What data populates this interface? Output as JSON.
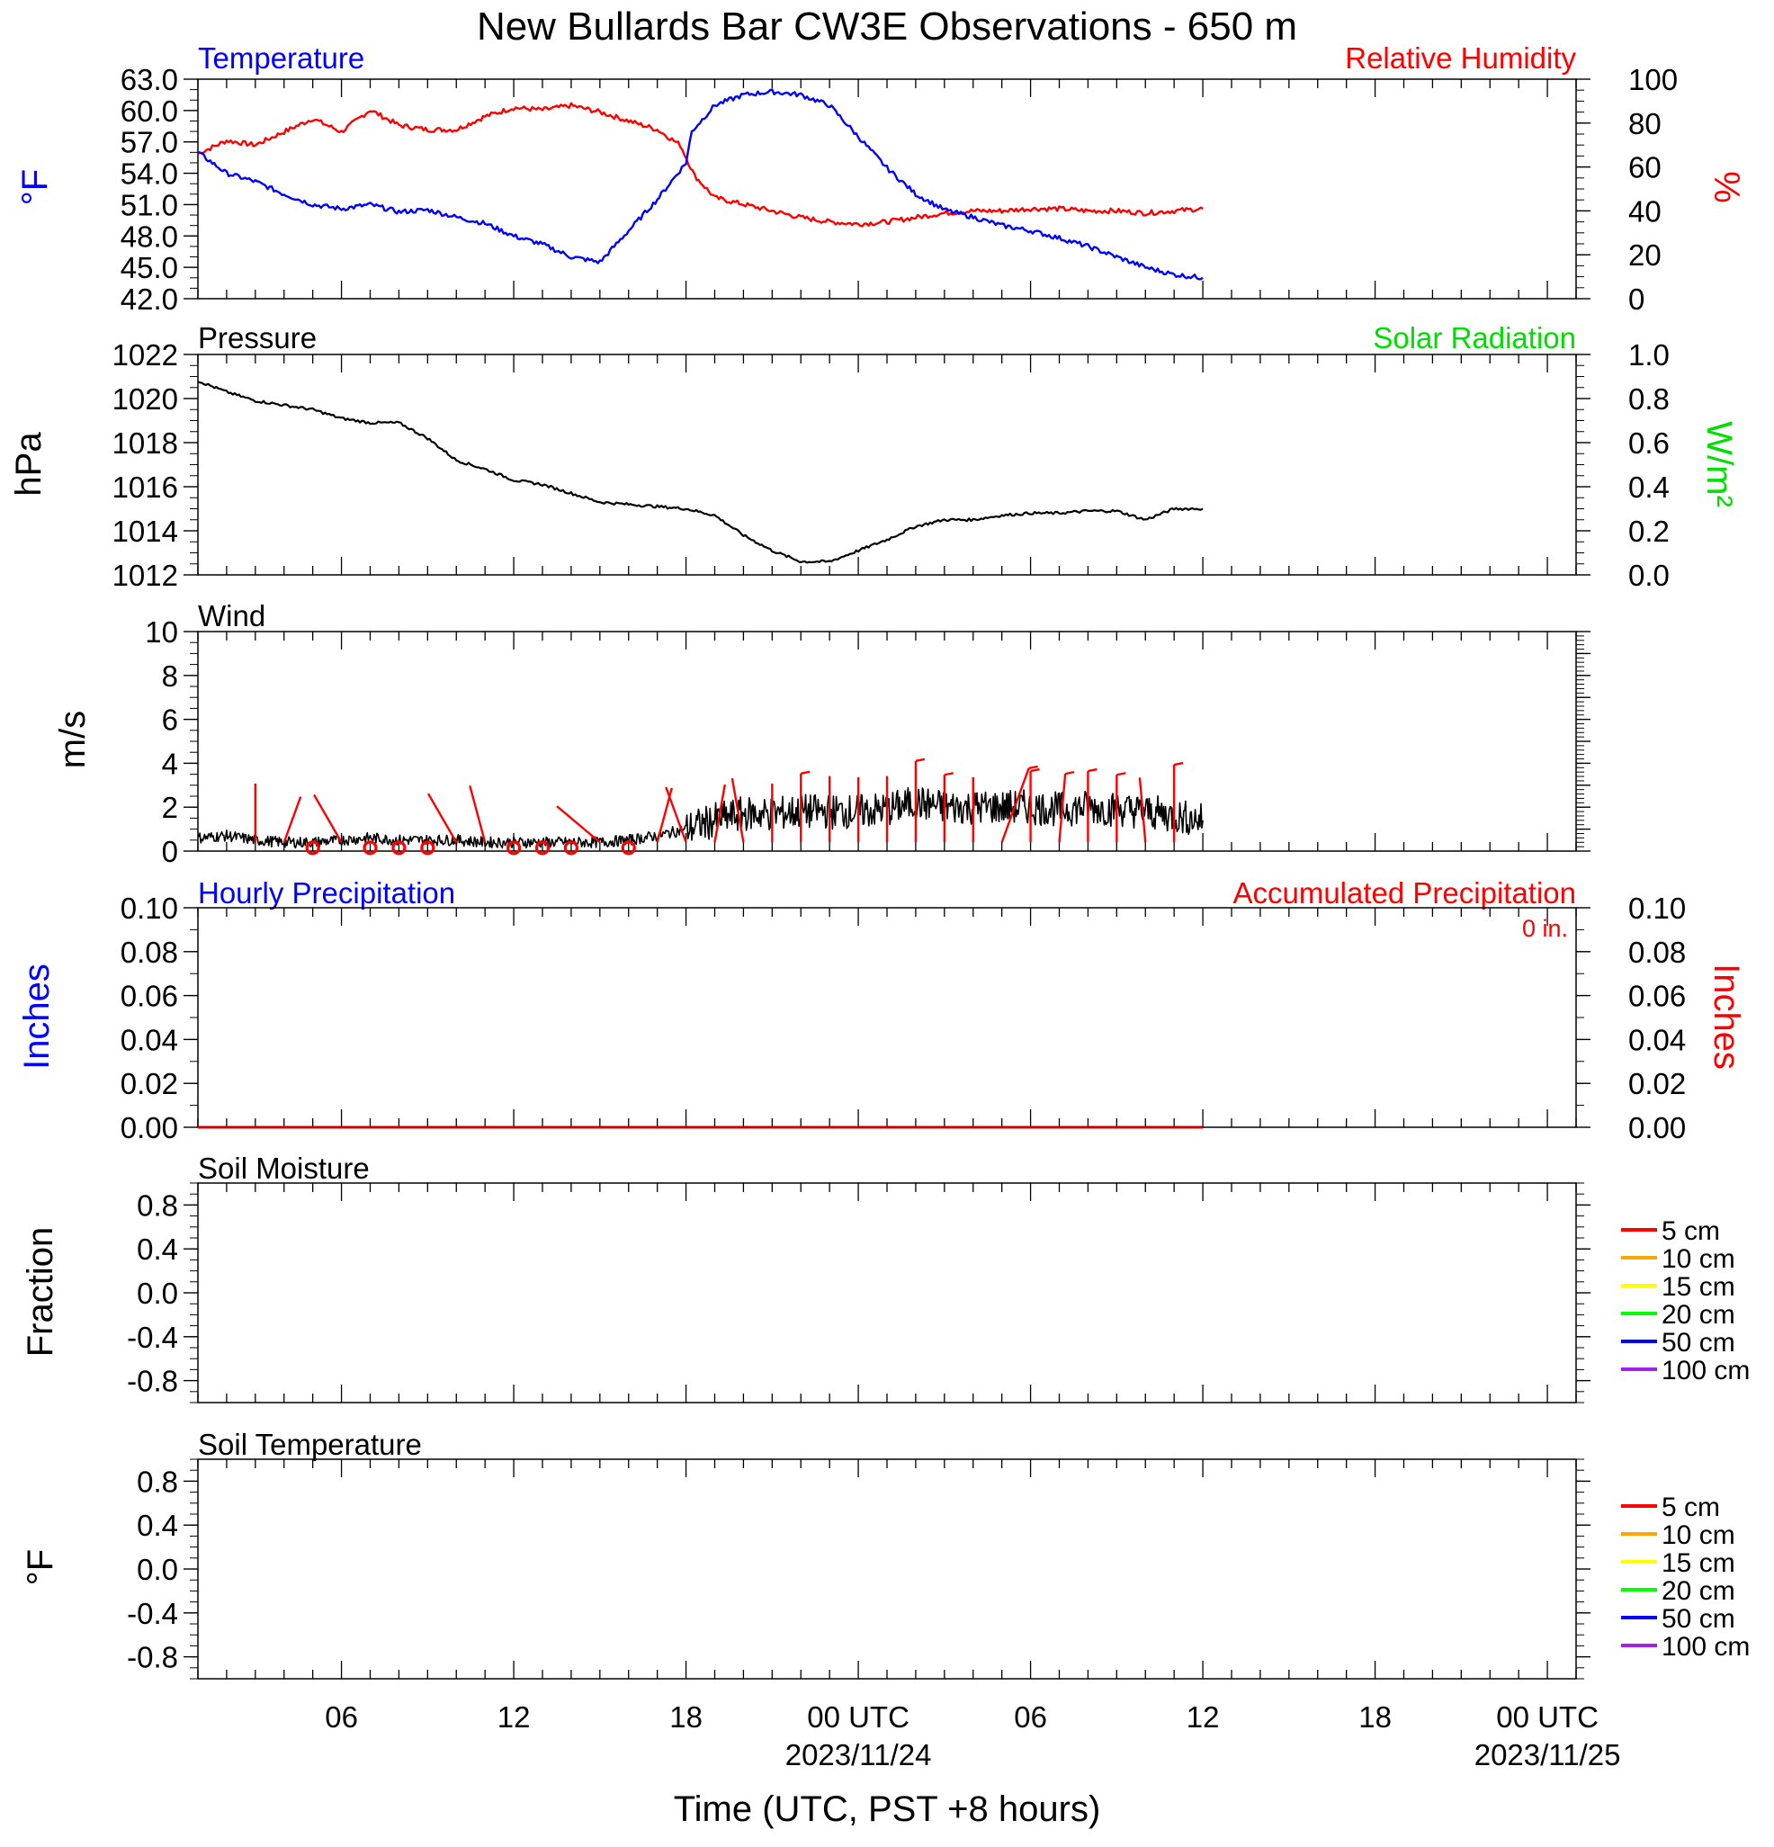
{
  "title": "New Bullards Bar CW3E Observations - 650 m",
  "xaxis": {
    "label": "Time (UTC, PST +8 hours)",
    "ticks": [
      {
        "t": 6,
        "label": "06",
        "date": ""
      },
      {
        "t": 12,
        "label": "12",
        "date": ""
      },
      {
        "t": 18,
        "label": "18",
        "date": ""
      },
      {
        "t": 24,
        "label": "00 UTC",
        "date": "2023/11/24"
      },
      {
        "t": 30,
        "label": "06",
        "date": ""
      },
      {
        "t": 36,
        "label": "12",
        "date": ""
      },
      {
        "t": 42,
        "label": "18",
        "date": ""
      },
      {
        "t": 48,
        "label": "00 UTC",
        "date": "2023/11/25"
      }
    ],
    "range": [
      1,
      49
    ]
  },
  "colors": {
    "blue": "#0000ff",
    "red": "#ff0000",
    "green": "#00dd00",
    "black": "#000000"
  },
  "panels": {
    "temp": {
      "left_title": "Temperature",
      "right_title": "Relative Humidity",
      "left_unit": "°F",
      "right_unit": "%",
      "left_ticks": [
        "63.0",
        "60.0",
        "57.0",
        "54.0",
        "51.0",
        "48.0",
        "45.0",
        "42.0"
      ],
      "right_ticks": [
        "100",
        "80",
        "60",
        "40",
        "20",
        "0"
      ]
    },
    "pressure": {
      "left_title": "Pressure",
      "right_title": "Solar Radiation",
      "left_unit": "hPa",
      "right_unit": "W/m²",
      "left_ticks": [
        "1022",
        "1020",
        "1018",
        "1016",
        "1014",
        "1012"
      ],
      "right_ticks": [
        "1.0",
        "0.8",
        "0.6",
        "0.4",
        "0.2",
        "0.0"
      ]
    },
    "wind": {
      "left_title": "Wind",
      "left_unit": "m/s",
      "left_ticks": [
        "10",
        "8",
        "6",
        "4",
        "2",
        "0"
      ]
    },
    "precip": {
      "left_title": "Hourly Precipitation",
      "right_title": "Accumulated Precipitation",
      "total_label": "0 in.",
      "left_unit": "Inches",
      "right_unit": "Inches",
      "left_ticks": [
        "0.10",
        "0.08",
        "0.06",
        "0.04",
        "0.02",
        "0.00"
      ],
      "right_ticks": [
        "0.10",
        "0.08",
        "0.06",
        "0.04",
        "0.02",
        "0.00"
      ]
    },
    "soil_moisture": {
      "left_title": "Soil Moisture",
      "left_unit": "Fraction",
      "left_ticks": [
        "0.8",
        "0.4",
        "0.0",
        "-0.4",
        "-0.8"
      ],
      "legend": [
        {
          "label": "5 cm",
          "color": "#ff0000"
        },
        {
          "label": "10 cm",
          "color": "#ffa500"
        },
        {
          "label": "15 cm",
          "color": "#ffff00"
        },
        {
          "label": "20 cm",
          "color": "#00ff00"
        },
        {
          "label": "50 cm",
          "color": "#0000ff"
        },
        {
          "label": "100 cm",
          "color": "#a020f0"
        }
      ]
    },
    "soil_temp": {
      "left_title": "Soil Temperature",
      "left_unit": "°F",
      "left_ticks": [
        "0.8",
        "0.4",
        "0.0",
        "-0.4",
        "-0.8"
      ],
      "legend": [
        {
          "label": "5 cm",
          "color": "#ff0000"
        },
        {
          "label": "10 cm",
          "color": "#ffa500"
        },
        {
          "label": "15 cm",
          "color": "#ffff00"
        },
        {
          "label": "20 cm",
          "color": "#00ff00"
        },
        {
          "label": "50 cm",
          "color": "#0000ff"
        },
        {
          "label": "100 cm",
          "color": "#a020f0"
        }
      ]
    }
  },
  "chart_data": [
    {
      "type": "line",
      "title": "Temperature",
      "ylabel": "°F",
      "ylim": [
        42,
        63
      ],
      "series": [
        {
          "name": "Temperature",
          "color": "#0000ff",
          "x": [
            1,
            2,
            3,
            4,
            5,
            6,
            7,
            8,
            9,
            10,
            11,
            12,
            13,
            14,
            15,
            16,
            17,
            18,
            18.2,
            19,
            20,
            21,
            22,
            23,
            24,
            25,
            26,
            27,
            28,
            29,
            30,
            31,
            32,
            33,
            34,
            35,
            36
          ],
          "y": [
            56.0,
            54.0,
            53.2,
            52.0,
            51.0,
            50.6,
            51.0,
            50.3,
            50.5,
            49.8,
            49.2,
            48.0,
            47.2,
            46.0,
            45.5,
            48.5,
            51.5,
            55.0,
            58.0,
            60.5,
            61.5,
            61.8,
            61.5,
            60.5,
            57.5,
            54.5,
            52.0,
            50.5,
            49.8,
            49.0,
            48.5,
            47.8,
            47.0,
            46.0,
            45.0,
            44.3,
            44.0
          ]
        }
      ]
    },
    {
      "type": "line",
      "title": "Relative Humidity",
      "ylabel": "%",
      "ylim": [
        0,
        100
      ],
      "series": [
        {
          "name": "Relative Humidity",
          "color": "#ff0000",
          "x": [
            1,
            2,
            3,
            4,
            5,
            6,
            7,
            8,
            9,
            10,
            11,
            12,
            13,
            14,
            15,
            16,
            17,
            17.8,
            18.3,
            19,
            20,
            21,
            22,
            23,
            24,
            25,
            26,
            27,
            28,
            29,
            30,
            31,
            32,
            33,
            34,
            35,
            36
          ],
          "y": [
            66,
            72,
            70,
            76,
            82,
            76,
            86,
            79,
            77,
            77,
            83,
            87,
            86,
            88,
            85,
            81,
            77,
            70,
            56,
            46,
            43,
            40,
            37,
            35,
            34,
            35,
            37,
            39,
            40,
            40,
            41,
            41,
            40,
            40,
            39,
            40,
            41
          ]
        }
      ]
    },
    {
      "type": "line",
      "title": "Pressure",
      "ylabel": "hPa",
      "ylim": [
        1012,
        1022
      ],
      "series": [
        {
          "name": "Pressure",
          "color": "#000000",
          "x": [
            1,
            2,
            3,
            4,
            5,
            6,
            7,
            8,
            9,
            10,
            11,
            12,
            13,
            14,
            15,
            16,
            17,
            18,
            19,
            20,
            21,
            22,
            23,
            24,
            25,
            26,
            27,
            28,
            29,
            30,
            31,
            32,
            33,
            34,
            35,
            36
          ],
          "y": [
            1020.8,
            1020.3,
            1019.9,
            1019.7,
            1019.5,
            1019.1,
            1018.9,
            1018.9,
            1018.2,
            1017.2,
            1016.8,
            1016.3,
            1016.1,
            1015.7,
            1015.3,
            1015.2,
            1015.1,
            1015.0,
            1014.7,
            1013.8,
            1013.1,
            1012.6,
            1012.6,
            1013.1,
            1013.6,
            1014.2,
            1014.5,
            1014.5,
            1014.7,
            1014.8,
            1014.8,
            1014.9,
            1014.9,
            1014.5,
            1015.0,
            1015.0
          ]
        }
      ]
    },
    {
      "type": "line",
      "title": "Solar Radiation",
      "ylabel": "W/m²",
      "ylim": [
        0,
        1
      ],
      "series": []
    },
    {
      "type": "line",
      "title": "Wind",
      "ylabel": "m/s",
      "ylim": [
        0,
        10
      ],
      "series": [
        {
          "name": "Wind",
          "color": "#000000",
          "x": [
            1,
            2,
            3,
            4,
            5,
            6,
            7,
            8,
            9,
            10,
            11,
            12,
            13,
            14,
            15,
            16,
            17,
            18,
            19,
            20,
            21,
            22,
            23,
            24,
            25,
            26,
            27,
            28,
            29,
            30,
            31,
            32,
            33,
            34,
            35,
            36
          ],
          "y": [
            0.6,
            0.7,
            0.5,
            0.4,
            0.4,
            0.5,
            0.6,
            0.5,
            0.5,
            0.5,
            0.4,
            0.4,
            0.4,
            0.4,
            0.4,
            0.5,
            0.7,
            1.0,
            1.4,
            1.7,
            1.7,
            1.8,
            1.8,
            1.8,
            1.9,
            2.2,
            2.0,
            2.0,
            2.0,
            2.0,
            1.9,
            2.0,
            1.9,
            1.8,
            1.6,
            1.4
          ]
        }
      ],
      "barbs": [
        {
          "x": 3,
          "speed": 1.8,
          "dir": 0
        },
        {
          "x": 4,
          "speed": 1.0,
          "dir": 20
        },
        {
          "x": 5,
          "speed": 0.0,
          "dir": 0
        },
        {
          "x": 6,
          "speed": 1.5,
          "dir": 330
        },
        {
          "x": 7,
          "speed": 0.0,
          "dir": 0
        },
        {
          "x": 8,
          "speed": 0.0,
          "dir": 0
        },
        {
          "x": 9,
          "speed": 0.0,
          "dir": 0
        },
        {
          "x": 10,
          "speed": 1.6,
          "dir": 330
        },
        {
          "x": 11,
          "speed": 1.8,
          "dir": 345
        },
        {
          "x": 12,
          "speed": 0.0,
          "dir": 0
        },
        {
          "x": 13,
          "speed": 0.0,
          "dir": 0
        },
        {
          "x": 14,
          "speed": 0.0,
          "dir": 0
        },
        {
          "x": 15,
          "speed": 1.6,
          "dir": 310
        },
        {
          "x": 16,
          "speed": 0.0,
          "dir": 0
        },
        {
          "x": 17,
          "speed": 1.6,
          "dir": 15
        },
        {
          "x": 18,
          "speed": 1.8,
          "dir": 340
        },
        {
          "x": 19,
          "speed": 1.8,
          "dir": 10
        },
        {
          "x": 20,
          "speed": 2.3,
          "dir": 350
        },
        {
          "x": 21,
          "speed": 1.8,
          "dir": 0
        },
        {
          "x": 22,
          "speed": 2.6,
          "dir": 0
        },
        {
          "x": 23,
          "speed": 2.4,
          "dir": 0
        },
        {
          "x": 24,
          "speed": 2.3,
          "dir": 0
        },
        {
          "x": 25,
          "speed": 2.4,
          "dir": 0
        },
        {
          "x": 26,
          "speed": 3.6,
          "dir": 0
        },
        {
          "x": 27,
          "speed": 2.5,
          "dir": 0
        },
        {
          "x": 28,
          "speed": 2.3,
          "dir": 0
        },
        {
          "x": 29,
          "speed": 3.4,
          "dir": 20
        },
        {
          "x": 30,
          "speed": 2.8,
          "dir": 0
        },
        {
          "x": 31,
          "speed": 2.6,
          "dir": 5
        },
        {
          "x": 32,
          "speed": 2.8,
          "dir": 0
        },
        {
          "x": 33,
          "speed": 2.5,
          "dir": 0
        },
        {
          "x": 34,
          "speed": 2.3,
          "dir": 355
        },
        {
          "x": 35,
          "speed": 3.3,
          "dir": 0
        }
      ]
    },
    {
      "type": "line",
      "title": "Hourly Precipitation",
      "ylabel": "Inches",
      "ylim": [
        0,
        0.1
      ],
      "series": [
        {
          "name": "Accumulated Precipitation",
          "color": "#cc0000",
          "x": [
            1,
            36
          ],
          "y": [
            0,
            0
          ]
        }
      ]
    },
    {
      "type": "line",
      "title": "Soil Moisture",
      "ylabel": "Fraction",
      "ylim": [
        -1,
        1
      ],
      "series": []
    },
    {
      "type": "line",
      "title": "Soil Temperature",
      "ylabel": "°F",
      "ylim": [
        -1,
        1
      ],
      "series": []
    }
  ]
}
